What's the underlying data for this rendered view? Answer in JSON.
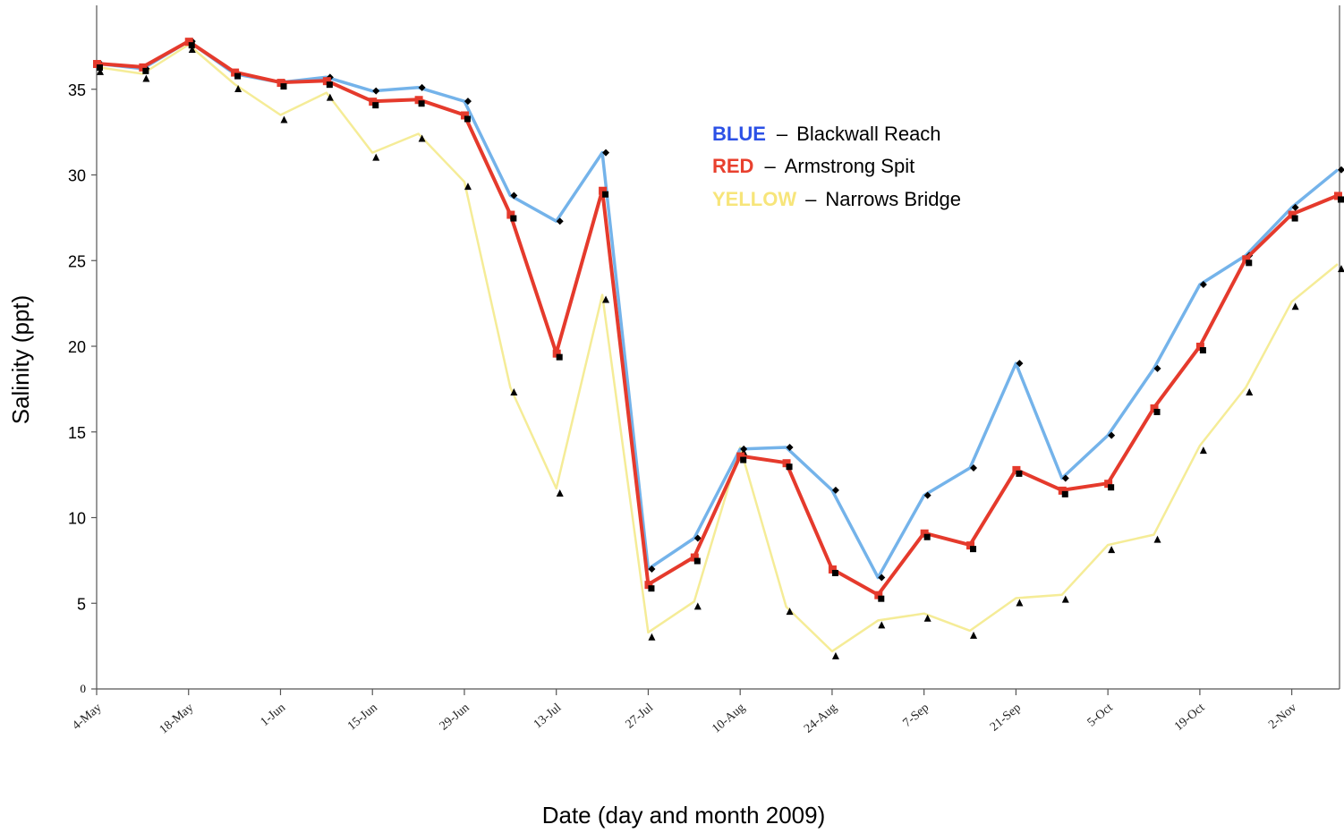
{
  "chart_data": {
    "type": "line",
    "title": "",
    "xlabel": "Date (day and month 2009)",
    "ylabel": "Salinity (ppt)",
    "ylim": [
      0,
      40
    ],
    "y_ticks": [
      0,
      5,
      10,
      15,
      20,
      25,
      30,
      35
    ],
    "x_tick_labels": [
      "4-May",
      "18-May",
      "1-Jun",
      "15-Jun",
      "29-Jun",
      "13-Jul",
      "27-Jul",
      "10-Aug",
      "24-Aug",
      "7-Sep",
      "21-Sep",
      "5-Oct",
      "19-Oct",
      "2-Nov"
    ],
    "x_interval_days": 7,
    "legend_placement": "top-center",
    "legend": [
      {
        "key": "BLUE",
        "separator": "–",
        "label": "Blackwall Reach",
        "color": "#2b50e6"
      },
      {
        "key": "RED",
        "separator": "–",
        "label": "Armstrong Spit",
        "color": "#e8402e"
      },
      {
        "key": "YELLOW",
        "separator": "–",
        "label": "Narrows Bridge",
        "color": "#f7e57a"
      }
    ],
    "series": [
      {
        "name": "Blackwall Reach",
        "color": "#74b3ea",
        "marker": "diamond",
        "values": [
          36.5,
          36.2,
          37.8,
          35.9,
          35.4,
          35.7,
          34.9,
          35.1,
          34.3,
          28.8,
          27.3,
          31.3,
          7.0,
          8.8,
          14.0,
          14.1,
          11.6,
          6.5,
          11.3,
          12.9,
          19.0,
          12.3,
          14.8,
          18.7,
          23.6,
          25.3,
          28.1,
          30.3
        ]
      },
      {
        "name": "Armstrong Spit",
        "color": "#e53a2c",
        "marker": "square",
        "values": [
          36.5,
          36.3,
          37.8,
          36.0,
          35.4,
          35.5,
          34.3,
          34.4,
          33.5,
          27.7,
          19.6,
          29.1,
          6.1,
          7.7,
          13.6,
          13.2,
          7.0,
          5.5,
          9.1,
          8.4,
          12.8,
          11.6,
          12.0,
          16.4,
          20.0,
          25.1,
          27.7,
          28.8
        ]
      },
      {
        "name": "Narrows Bridge",
        "color": "#f5ec97",
        "marker": "triangle",
        "values": [
          36.3,
          35.9,
          37.6,
          35.3,
          33.5,
          34.8,
          31.3,
          32.4,
          29.6,
          17.6,
          11.7,
          23.0,
          3.3,
          5.1,
          14.1,
          4.8,
          2.2,
          4.0,
          4.4,
          3.4,
          5.3,
          5.5,
          8.4,
          9.0,
          14.2,
          17.6,
          22.6,
          24.8
        ]
      }
    ]
  }
}
